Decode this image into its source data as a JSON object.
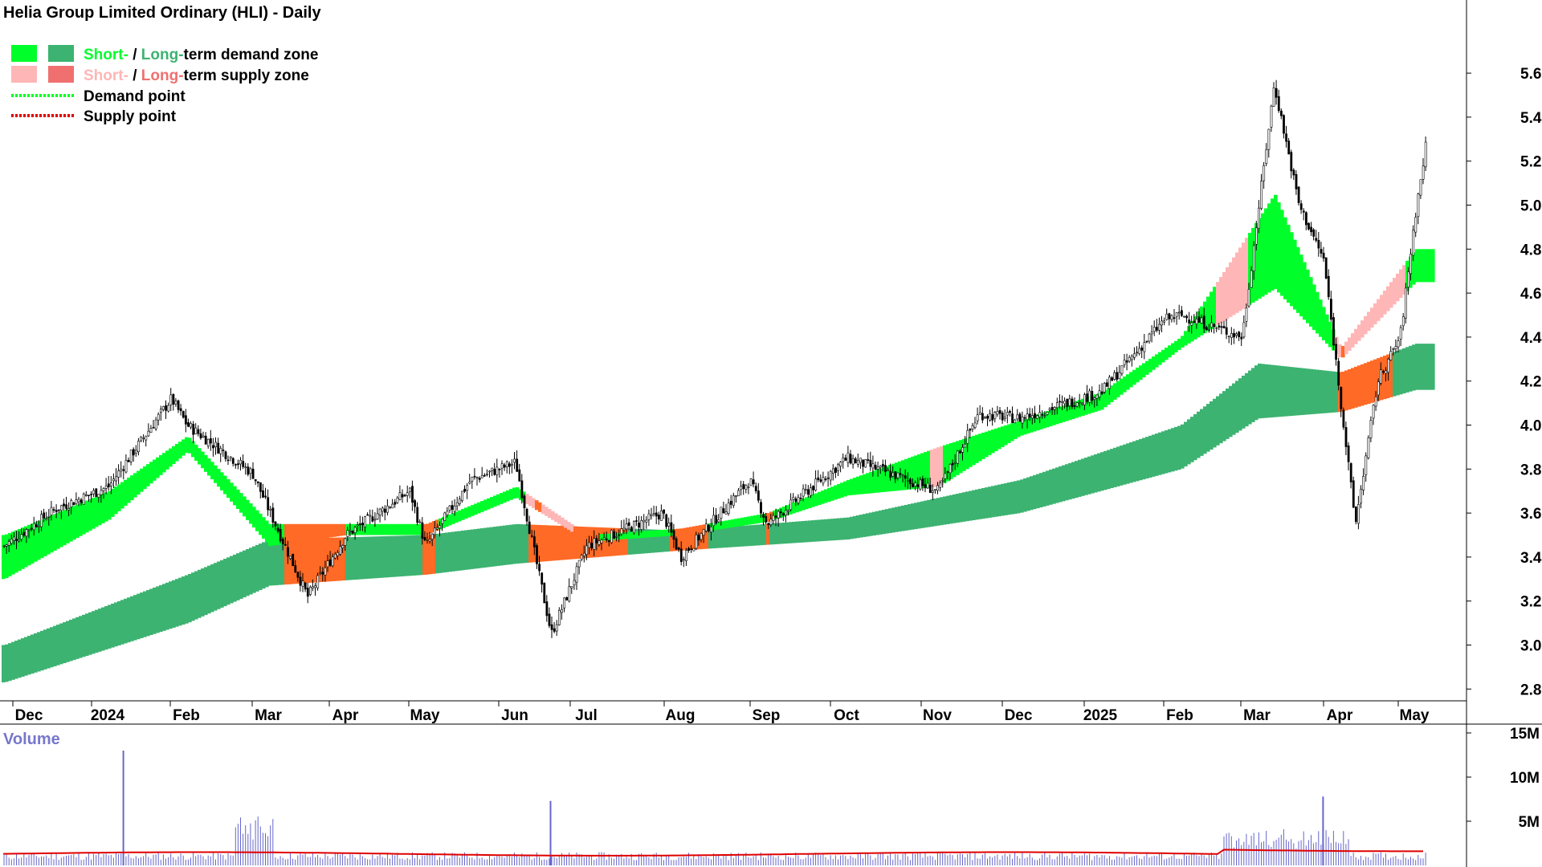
{
  "chart_data": {
    "type": "candlestick",
    "title": "Helia Group Limited Ordinary (HLI) - Daily",
    "legend": {
      "demand_zone": {
        "short": "Short-",
        "sep": " / ",
        "long": "Long-",
        "rest": "term demand zone"
      },
      "supply_zone": {
        "short": "Short-",
        "sep": " / ",
        "long": "Long-",
        "rest": "term supply zone"
      },
      "demand_point": "Demand point",
      "supply_point": "Supply point"
    },
    "colors": {
      "short_demand": "#00ff2a",
      "long_demand": "#3cb371",
      "short_supply": "#ffb6b6",
      "long_supply": "#ff6a26",
      "volume_bar": "#6666cc",
      "volume_avg": "#e00000",
      "demand_point": "#00ff2a",
      "supply_point": "#e00000"
    },
    "x_labels": [
      "Dec",
      "2024",
      "Feb",
      "Mar",
      "Apr",
      "May",
      "Jun",
      "Jul",
      "Aug",
      "Sep",
      "Oct",
      "Nov",
      "Dec",
      "2025",
      "Feb",
      "Mar",
      "Apr",
      "May"
    ],
    "y_axis": {
      "ticks": [
        "2.8",
        "3.0",
        "3.2",
        "3.4",
        "3.6",
        "3.8",
        "4.0",
        "4.2",
        "4.4",
        "4.6",
        "4.8",
        "5.0",
        "5.2",
        "5.4",
        "5.6"
      ],
      "range": [
        2.75,
        5.75
      ]
    },
    "volume": {
      "label": "Volume",
      "ticks": [
        "5M",
        "10M",
        "15M"
      ],
      "range": [
        0,
        15000000
      ],
      "spikes": [
        {
          "month": "Jan 2024",
          "value": 13000000
        },
        {
          "month": "Jun 2024",
          "value": 7300000
        },
        {
          "month": "Mar 2025",
          "value": 7800000
        }
      ]
    },
    "price_path": [
      {
        "x": "Dec 2023",
        "close": 3.45
      },
      {
        "x": "mid Dec 2023",
        "close": 3.62
      },
      {
        "x": "Jan 2024",
        "close": 3.72
      },
      {
        "x": "late Jan 2024",
        "close": 4.12
      },
      {
        "x": "Feb 2024",
        "close": 4.0
      },
      {
        "x": "late Feb 2024",
        "close": 3.78
      },
      {
        "x": "mid Mar 2024",
        "close": 3.22
      },
      {
        "x": "Apr 2024",
        "close": 3.5
      },
      {
        "x": "late Apr 2024",
        "close": 3.7
      },
      {
        "x": "May 2024",
        "close": 3.45
      },
      {
        "x": "mid May 2024",
        "close": 3.75
      },
      {
        "x": "Jun 2024",
        "close": 3.83
      },
      {
        "x": "mid Jun 2024",
        "close": 3.05
      },
      {
        "x": "Jul 2024",
        "close": 3.45
      },
      {
        "x": "late Jul 2024",
        "close": 3.6
      },
      {
        "x": "Aug 2024",
        "close": 3.4
      },
      {
        "x": "late Aug 2024",
        "close": 3.75
      },
      {
        "x": "Sep 2024",
        "close": 3.55
      },
      {
        "x": "Oct 2024",
        "close": 3.85
      },
      {
        "x": "Nov 2024",
        "close": 3.7
      },
      {
        "x": "mid Nov 2024",
        "close": 4.05
      },
      {
        "x": "Dec 2024",
        "close": 4.03
      },
      {
        "x": "Jan 2025",
        "close": 4.15
      },
      {
        "x": "late Jan 2025",
        "close": 4.48
      },
      {
        "x": "Feb 2025",
        "close": 4.5
      },
      {
        "x": "late Feb 2025",
        "close": 4.4
      },
      {
        "x": "early Mar 2025",
        "close": 5.55
      },
      {
        "x": "mid Mar 2025",
        "close": 5.0
      },
      {
        "x": "late Mar 2025",
        "close": 4.75
      },
      {
        "x": "early Apr 2025",
        "close": 3.55
      },
      {
        "x": "mid Apr 2025",
        "close": 4.2
      },
      {
        "x": "late Apr 2025",
        "close": 4.4
      },
      {
        "x": "May 2025",
        "close": 4.95
      },
      {
        "x": "mid May 2025",
        "close": 5.3
      }
    ],
    "short_term_zone": [
      {
        "x": "Dec 2023",
        "top": 3.5,
        "bottom": 3.3
      },
      {
        "x": "Jan 2024",
        "top": 3.7,
        "bottom": 3.57
      },
      {
        "x": "Feb 2024",
        "top": 3.95,
        "bottom": 3.88
      },
      {
        "x": "Mar 2024",
        "top": 3.55,
        "bottom": 3.45
      },
      {
        "x": "Apr 2024",
        "top": 3.55,
        "bottom": 3.5
      },
      {
        "x": "May 2024",
        "top": 3.55,
        "bottom": 3.5
      },
      {
        "x": "Jun 2024",
        "top": 3.72,
        "bottom": 3.67
      },
      {
        "x": "Jul 2024",
        "top": 3.5,
        "bottom": 3.47
      },
      {
        "x": "Aug 2024",
        "top": 3.53,
        "bottom": 3.5
      },
      {
        "x": "Sep 2024",
        "top": 3.6,
        "bottom": 3.56
      },
      {
        "x": "Oct 2024",
        "top": 3.75,
        "bottom": 3.68
      },
      {
        "x": "Nov 2024",
        "top": 3.9,
        "bottom": 3.72
      },
      {
        "x": "Dec 2024",
        "top": 4.02,
        "bottom": 3.95
      },
      {
        "x": "Jan 2025",
        "top": 4.15,
        "bottom": 4.07
      },
      {
        "x": "Feb 2025",
        "top": 4.4,
        "bottom": 4.35
      },
      {
        "x": "early Mar 2025",
        "top": 5.05,
        "bottom": 4.62
      },
      {
        "x": "Apr 2025",
        "top": 4.35,
        "bottom": 4.3
      },
      {
        "x": "May 2025",
        "top": 4.8,
        "bottom": 4.65
      }
    ],
    "long_term_zone": [
      {
        "x": "Dec 2023",
        "top": 3.0,
        "bottom": 2.83
      },
      {
        "x": "Feb 2024",
        "top": 3.32,
        "bottom": 3.1
      },
      {
        "x": "Mar 2024",
        "top": 3.48,
        "bottom": 3.27
      },
      {
        "x": "May 2024",
        "top": 3.5,
        "bottom": 3.32
      },
      {
        "x": "Jun 2024",
        "top": 3.55,
        "bottom": 3.37
      },
      {
        "x": "Aug 2024",
        "top": 3.52,
        "bottom": 3.43
      },
      {
        "x": "Oct 2024",
        "top": 3.58,
        "bottom": 3.48
      },
      {
        "x": "Dec 2024",
        "top": 3.75,
        "bottom": 3.6
      },
      {
        "x": "Feb 2025",
        "top": 4.0,
        "bottom": 3.8
      },
      {
        "x": "Mar 2025",
        "top": 4.28,
        "bottom": 4.03
      },
      {
        "x": "Apr 2025",
        "top": 4.24,
        "bottom": 4.06
      },
      {
        "x": "May 2025",
        "top": 4.37,
        "bottom": 4.16
      }
    ]
  }
}
